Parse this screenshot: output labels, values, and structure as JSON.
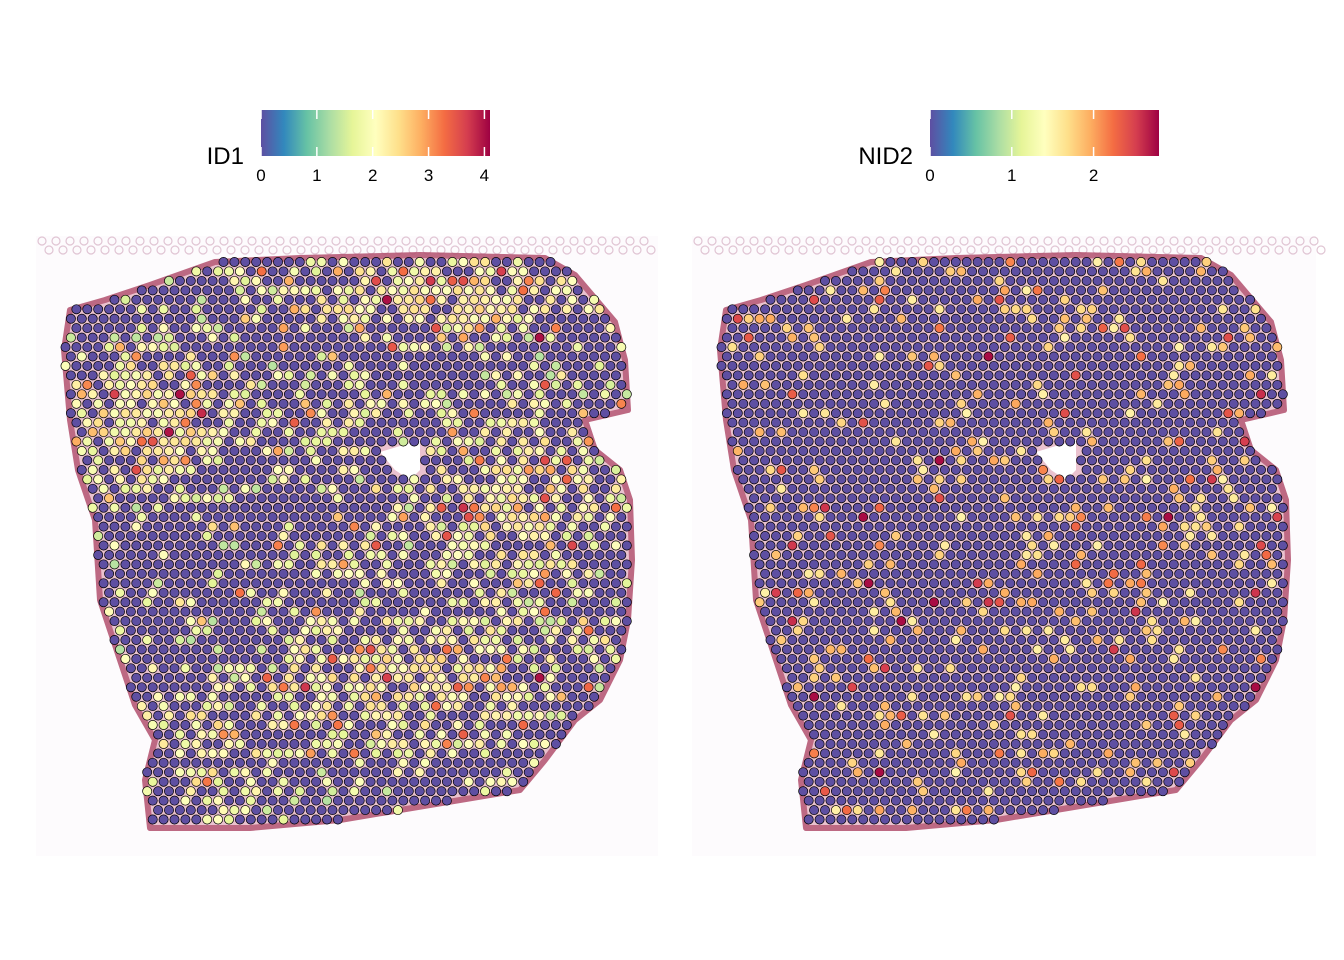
{
  "chart_data": [
    {
      "type": "scatter",
      "title": "ID1",
      "legend": {
        "title": "ID1",
        "placement": "top",
        "min": 0,
        "max": 4.1,
        "ticks": [
          "0",
          "1",
          "2",
          "3",
          "4"
        ],
        "tick_values": [
          0,
          1,
          2,
          3,
          4
        ]
      },
      "palette": [
        "#5E4FA2",
        "#3288BD",
        "#66C2A5",
        "#ABDDA4",
        "#E6F598",
        "#FFFFBF",
        "#FEE08B",
        "#FDAE61",
        "#F46D43",
        "#D53E4F",
        "#9E0142"
      ],
      "background": "H&E tissue image",
      "grid": false,
      "spot_summary": {
        "zero_fraction": 0.55,
        "common_range": [
          1,
          2.5
        ],
        "max": 4.1
      },
      "hotspot_regions": [
        {
          "region": "top band",
          "level": 1.6
        },
        {
          "region": "upper-left band",
          "level": 2.2
        },
        {
          "region": "right-center",
          "level": 1.5
        },
        {
          "region": "bottom-center",
          "level": 1.4
        }
      ]
    },
    {
      "type": "scatter",
      "title": "NID2",
      "legend": {
        "title": "NID2",
        "placement": "top",
        "min": 0,
        "max": 2.8,
        "ticks": [
          "0",
          "1",
          "2"
        ],
        "tick_values": [
          0,
          1,
          2
        ]
      },
      "palette": [
        "#5E4FA2",
        "#3288BD",
        "#66C2A5",
        "#ABDDA4",
        "#E6F598",
        "#FFFFBF",
        "#FEE08B",
        "#FDAE61",
        "#F46D43",
        "#D53E4F",
        "#9E0142"
      ],
      "background": "H&E tissue image",
      "grid": false,
      "spot_summary": {
        "zero_fraction": 0.86,
        "common_range": [
          1.5,
          2
        ],
        "max": 2.8
      }
    }
  ]
}
